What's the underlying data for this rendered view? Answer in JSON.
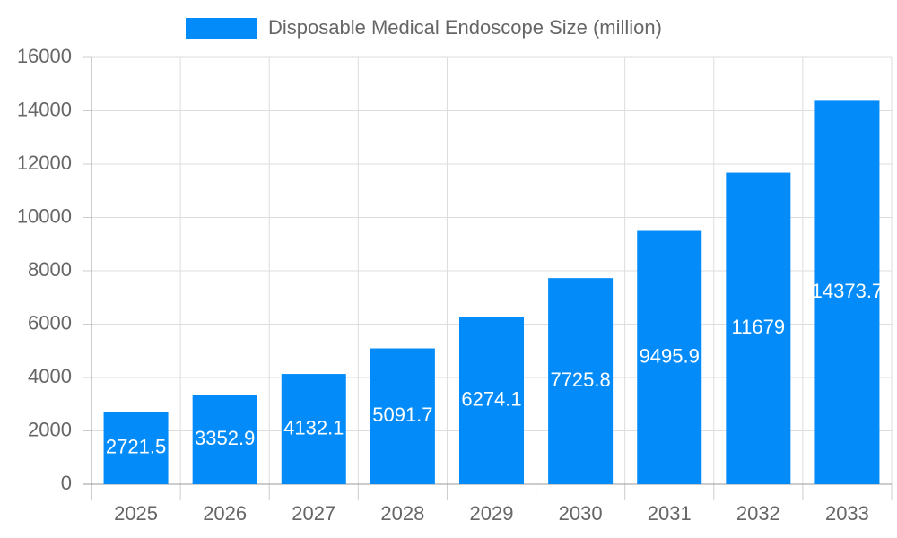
{
  "chart_data": {
    "type": "bar",
    "categories": [
      "2025",
      "2026",
      "2027",
      "2028",
      "2029",
      "2030",
      "2031",
      "2032",
      "2033"
    ],
    "series": [
      {
        "name": "Disposable Medical Endoscope Size (million)",
        "color": "#038cf9",
        "values": [
          2721.5,
          3352.9,
          4132.1,
          5091.7,
          6274.1,
          7725.8,
          9495.9,
          11679,
          14373.7
        ]
      }
    ],
    "ylim": [
      0,
      16000
    ],
    "yticks": [
      0,
      2000,
      4000,
      6000,
      8000,
      10000,
      12000,
      14000,
      16000
    ],
    "grid": true,
    "legend": "top"
  }
}
